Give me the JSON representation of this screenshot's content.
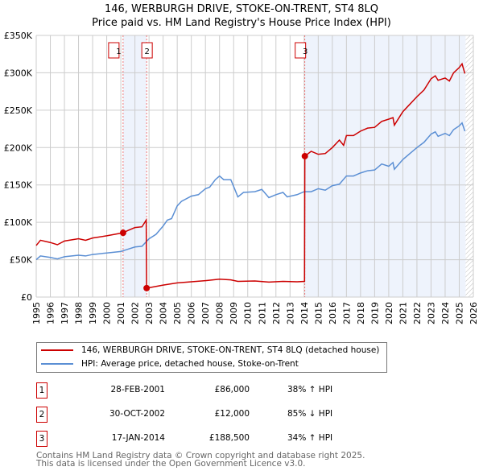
{
  "chart_data": {
    "type": "line",
    "title": "146, WERBURGH DRIVE, STOKE-ON-TRENT, ST4 8LQ",
    "subtitle": "Price paid vs. HM Land Registry's House Price Index (HPI)",
    "xlim": [
      1995,
      2026
    ],
    "ylim": [
      0,
      350000
    ],
    "yticks": [
      {
        "v": 0,
        "label": "£0"
      },
      {
        "v": 50000,
        "label": "£50K"
      },
      {
        "v": 100000,
        "label": "£100K"
      },
      {
        "v": 150000,
        "label": "£150K"
      },
      {
        "v": 200000,
        "label": "£200K"
      },
      {
        "v": 250000,
        "label": "£250K"
      },
      {
        "v": 300000,
        "label": "£300K"
      },
      {
        "v": 350000,
        "label": "£350K"
      }
    ],
    "xticks": [
      "1995",
      "1996",
      "1997",
      "1998",
      "1999",
      "2000",
      "2001",
      "2002",
      "2003",
      "2004",
      "2005",
      "2006",
      "2007",
      "2008",
      "2009",
      "2010",
      "2011",
      "2012",
      "2013",
      "2014",
      "2015",
      "2016",
      "2017",
      "2018",
      "2019",
      "2020",
      "2021",
      "2022",
      "2023",
      "2024",
      "2025",
      "2026"
    ],
    "grid": true,
    "shaded_ranges": [
      [
        2001.16,
        2002.83
      ],
      [
        2014.05,
        2025.45
      ]
    ],
    "forecast_hatch_from": 2025.45,
    "series": [
      {
        "name": "146, WERBURGH DRIVE, STOKE-ON-TRENT, ST4 8LQ (detached house)",
        "color": "#cc0000",
        "points": [
          [
            1995,
            69
          ],
          [
            1995.3,
            76
          ],
          [
            1996,
            73
          ],
          [
            1996.5,
            70
          ],
          [
            1997,
            75
          ],
          [
            1998,
            78
          ],
          [
            1998.5,
            76
          ],
          [
            1999,
            79
          ],
          [
            2000,
            82
          ],
          [
            2001.16,
            86
          ],
          [
            2001.5,
            89
          ],
          [
            2002,
            93
          ],
          [
            2002.5,
            94
          ],
          [
            2002.8,
            103
          ],
          [
            2002.83,
            12
          ],
          [
            2003,
            12.5
          ],
          [
            2004,
            16
          ],
          [
            2005,
            19
          ],
          [
            2006,
            20.5
          ],
          [
            2007,
            22
          ],
          [
            2008,
            24
          ],
          [
            2008.8,
            23
          ],
          [
            2009.3,
            21
          ],
          [
            2010.5,
            21.5
          ],
          [
            2011.5,
            20
          ],
          [
            2012.5,
            21
          ],
          [
            2013.5,
            20.5
          ],
          [
            2014.03,
            21
          ],
          [
            2014.05,
            188.5
          ],
          [
            2014.5,
            195
          ],
          [
            2015,
            191
          ],
          [
            2015.5,
            192
          ],
          [
            2016,
            200
          ],
          [
            2016.5,
            210
          ],
          [
            2016.8,
            203
          ],
          [
            2017,
            216
          ],
          [
            2017.5,
            216
          ],
          [
            2018,
            222
          ],
          [
            2018.5,
            226
          ],
          [
            2019,
            227
          ],
          [
            2019.5,
            235
          ],
          [
            2020,
            238
          ],
          [
            2020.3,
            240
          ],
          [
            2020.4,
            230
          ],
          [
            2021,
            248
          ],
          [
            2021.5,
            258
          ],
          [
            2022,
            268
          ],
          [
            2022.5,
            277
          ],
          [
            2023,
            292
          ],
          [
            2023.3,
            296
          ],
          [
            2023.5,
            290
          ],
          [
            2024,
            293
          ],
          [
            2024.3,
            289
          ],
          [
            2024.6,
            300
          ],
          [
            2025,
            307
          ],
          [
            2025.2,
            312
          ],
          [
            2025.4,
            299
          ]
        ]
      },
      {
        "name": "HPI: Average price, detached house, Stoke-on-Trent",
        "color": "#5b8fd4",
        "points": [
          [
            1995,
            50
          ],
          [
            1995.3,
            55
          ],
          [
            1996,
            53
          ],
          [
            1996.5,
            51
          ],
          [
            1997,
            54
          ],
          [
            1998,
            56
          ],
          [
            1998.5,
            55
          ],
          [
            1999,
            57
          ],
          [
            2000,
            59
          ],
          [
            2001,
            61
          ],
          [
            2001.5,
            64
          ],
          [
            2002,
            67
          ],
          [
            2002.5,
            68
          ],
          [
            2003,
            78
          ],
          [
            2003.5,
            84
          ],
          [
            2004,
            95
          ],
          [
            2004.3,
            103
          ],
          [
            2004.6,
            105
          ],
          [
            2005,
            122
          ],
          [
            2005.3,
            128
          ],
          [
            2006,
            135
          ],
          [
            2006.5,
            137
          ],
          [
            2007,
            145
          ],
          [
            2007.3,
            147
          ],
          [
            2007.7,
            157
          ],
          [
            2008,
            162
          ],
          [
            2008.3,
            157
          ],
          [
            2008.8,
            157
          ],
          [
            2009,
            148
          ],
          [
            2009.3,
            134
          ],
          [
            2009.7,
            140
          ],
          [
            2010.5,
            141
          ],
          [
            2011,
            144
          ],
          [
            2011.5,
            133
          ],
          [
            2012,
            137
          ],
          [
            2012.5,
            140
          ],
          [
            2012.8,
            134
          ],
          [
            2013.5,
            137
          ],
          [
            2014,
            141
          ],
          [
            2014.5,
            141
          ],
          [
            2015,
            145
          ],
          [
            2015.5,
            143
          ],
          [
            2016,
            149
          ],
          [
            2016.5,
            151
          ],
          [
            2017,
            162
          ],
          [
            2017.5,
            162
          ],
          [
            2018,
            166
          ],
          [
            2018.5,
            169
          ],
          [
            2019,
            170
          ],
          [
            2019.5,
            178
          ],
          [
            2020,
            175
          ],
          [
            2020.3,
            180
          ],
          [
            2020.4,
            171
          ],
          [
            2021,
            184
          ],
          [
            2021.5,
            192
          ],
          [
            2022,
            200
          ],
          [
            2022.5,
            207
          ],
          [
            2023,
            218
          ],
          [
            2023.3,
            221
          ],
          [
            2023.5,
            215
          ],
          [
            2024,
            219
          ],
          [
            2024.3,
            216
          ],
          [
            2024.6,
            224
          ],
          [
            2025,
            229
          ],
          [
            2025.2,
            233
          ],
          [
            2025.4,
            222
          ]
        ]
      }
    ],
    "y_units": "thousands GBP",
    "sales": [
      {
        "label": "1",
        "x": 2001.16,
        "y": 86
      },
      {
        "label": "2",
        "x": 2002.83,
        "y": 12
      },
      {
        "label": "3",
        "x": 2014.05,
        "y": 188.5
      }
    ]
  },
  "legend": {
    "red": "146, WERBURGH DRIVE, STOKE-ON-TRENT, ST4 8LQ (detached house)",
    "blue": "HPI: Average price, detached house, Stoke-on-Trent"
  },
  "transactions": [
    {
      "num": "1",
      "date": "28-FEB-2001",
      "price": "£86,000",
      "hpi": "38% ↑ HPI"
    },
    {
      "num": "2",
      "date": "30-OCT-2002",
      "price": "£12,000",
      "hpi": "85% ↓ HPI"
    },
    {
      "num": "3",
      "date": "17-JAN-2014",
      "price": "£188,500",
      "hpi": "34% ↑ HPI"
    }
  ],
  "footer": {
    "line1": "Contains HM Land Registry data © Crown copyright and database right 2025.",
    "line2": "This data is licensed under the Open Government Licence v3.0."
  }
}
